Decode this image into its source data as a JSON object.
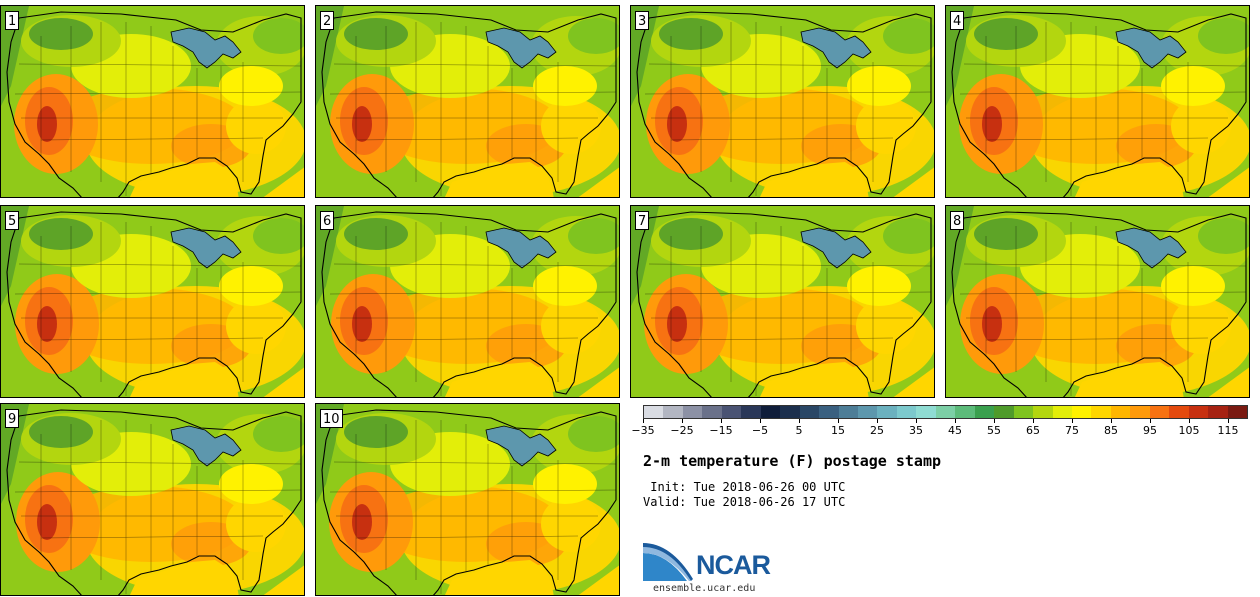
{
  "panels": [
    {
      "label": "1"
    },
    {
      "label": "2"
    },
    {
      "label": "3"
    },
    {
      "label": "4"
    },
    {
      "label": "5"
    },
    {
      "label": "6"
    },
    {
      "label": "7"
    },
    {
      "label": "8"
    },
    {
      "label": "9"
    },
    {
      "label": "10"
    }
  ],
  "colorbar": {
    "colors": [
      "#d9dce3",
      "#b2b6c2",
      "#8c91a5",
      "#6a718a",
      "#4a5373",
      "#2a3758",
      "#0f1d3a",
      "#1c2f4d",
      "#2a4766",
      "#3a6080",
      "#4d7d97",
      "#5d97ad",
      "#6bb1bf",
      "#7cc9cd",
      "#8fdcd3",
      "#7ccfa6",
      "#5cbb7a",
      "#3aa04e",
      "#4f9b2b",
      "#7fc41f",
      "#b3d60f",
      "#e3ee09",
      "#fff200",
      "#ffd600",
      "#ffb600",
      "#ff9a0a",
      "#f77212",
      "#e44a0e",
      "#c73010",
      "#a62212",
      "#7a1a12"
    ],
    "tick_labels": [
      "−35",
      "−25",
      "−15",
      "−5",
      "5",
      "15",
      "25",
      "35",
      "45",
      "55",
      "65",
      "75",
      "85",
      "95",
      "105",
      "115"
    ]
  },
  "title": "2-m temperature (F) postage stamp",
  "init_line": " Init: Tue 2018-06-26 00 UTC",
  "valid_line": "Valid: Tue 2018-06-26 17 UTC",
  "logo": {
    "brand": "NCAR",
    "url": "ensemble.ucar.edu"
  }
}
